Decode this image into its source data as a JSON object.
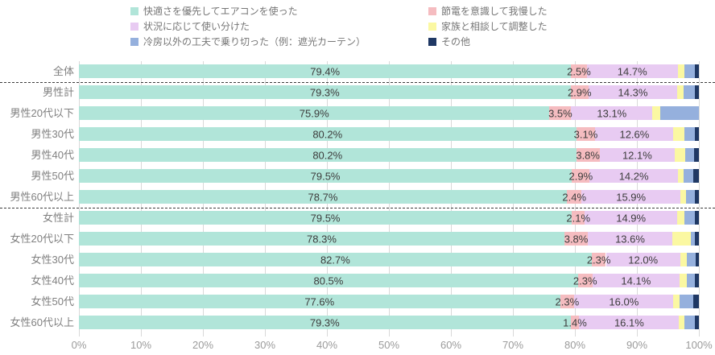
{
  "chart_data": {
    "type": "bar",
    "orientation": "horizontal-stacked",
    "title": "",
    "xlabel": "",
    "ylabel": "",
    "xlim": [
      0,
      100
    ],
    "categories": [
      "全体",
      "男性計",
      "男性20代以下",
      "男性30代",
      "男性40代",
      "男性50代",
      "男性60代以上",
      "女性計",
      "女性20代以下",
      "女性30代",
      "女性40代",
      "女性50代",
      "女性60代以上"
    ],
    "series": [
      {
        "name": "快適さを優先してエアコンを使った",
        "color": "#b1e5d9",
        "values": [
          79.4,
          79.3,
          75.9,
          80.2,
          80.2,
          79.5,
          78.7,
          79.5,
          78.3,
          82.7,
          80.5,
          77.6,
          79.3
        ],
        "labels": [
          "79.4%",
          "79.3%",
          "75.9%",
          "80.2%",
          "80.2%",
          "79.5%",
          "78.7%",
          "79.5%",
          "78.3%",
          "82.7%",
          "80.5%",
          "77.6%",
          "79.3%"
        ]
      },
      {
        "name": "節電を意識して我慢した",
        "color": "#f5bcc0",
        "values": [
          2.5,
          2.9,
          3.5,
          3.1,
          3.8,
          2.9,
          2.4,
          2.1,
          3.8,
          2.3,
          2.3,
          2.3,
          1.4
        ],
        "labels": [
          "2.5%",
          "2.9%",
          "3.5%",
          "3.1%",
          "3.8%",
          "2.9%",
          "2.4%",
          "2.1%",
          "3.8%",
          "2.3%",
          "2.3%",
          "2.3%",
          "1.4%"
        ]
      },
      {
        "name": "状況に応じて使い分けた",
        "color": "#e8cbf2",
        "values": [
          14.7,
          14.3,
          13.1,
          12.6,
          12.1,
          14.2,
          15.9,
          14.9,
          13.6,
          12.0,
          14.1,
          16.0,
          16.1
        ],
        "labels": [
          "14.7%",
          "14.3%",
          "13.1%",
          "12.6%",
          "12.1%",
          "14.2%",
          "15.9%",
          "14.9%",
          "13.6%",
          "12.0%",
          "14.1%",
          "16.0%",
          "16.1%"
        ]
      },
      {
        "name": "家族と相談して調整した",
        "color": "#fbf8a2",
        "values": [
          1.0,
          1.0,
          1.3,
          1.8,
          1.7,
          0.9,
          0.9,
          1.2,
          3.0,
          1.0,
          1.1,
          1.0,
          0.9
        ],
        "labels": null
      },
      {
        "name": "冷房以外の工夫で乗り切った（例：遮光カーテン）",
        "color": "#95b0dd",
        "values": [
          1.8,
          1.8,
          6.2,
          1.7,
          1.4,
          1.6,
          1.4,
          1.6,
          0.7,
          1.5,
          1.4,
          2.2,
          1.6
        ],
        "labels": null
      },
      {
        "name": "その他",
        "color": "#1f3864",
        "values": [
          0.6,
          0.7,
          0.0,
          0.6,
          0.8,
          0.9,
          0.7,
          0.7,
          0.6,
          0.5,
          0.6,
          0.9,
          0.7
        ],
        "labels": null
      }
    ],
    "layout": {
      "legend_position": "top",
      "legend_columns": 2,
      "grid": true,
      "gridline_color": "#d9d9d9",
      "separators_after_rows": [
        0,
        6
      ],
      "x_ticks": [
        "0%",
        "10%",
        "20%",
        "30%",
        "40%",
        "50%",
        "60%",
        "70%",
        "80%",
        "90%",
        "100%"
      ]
    }
  }
}
